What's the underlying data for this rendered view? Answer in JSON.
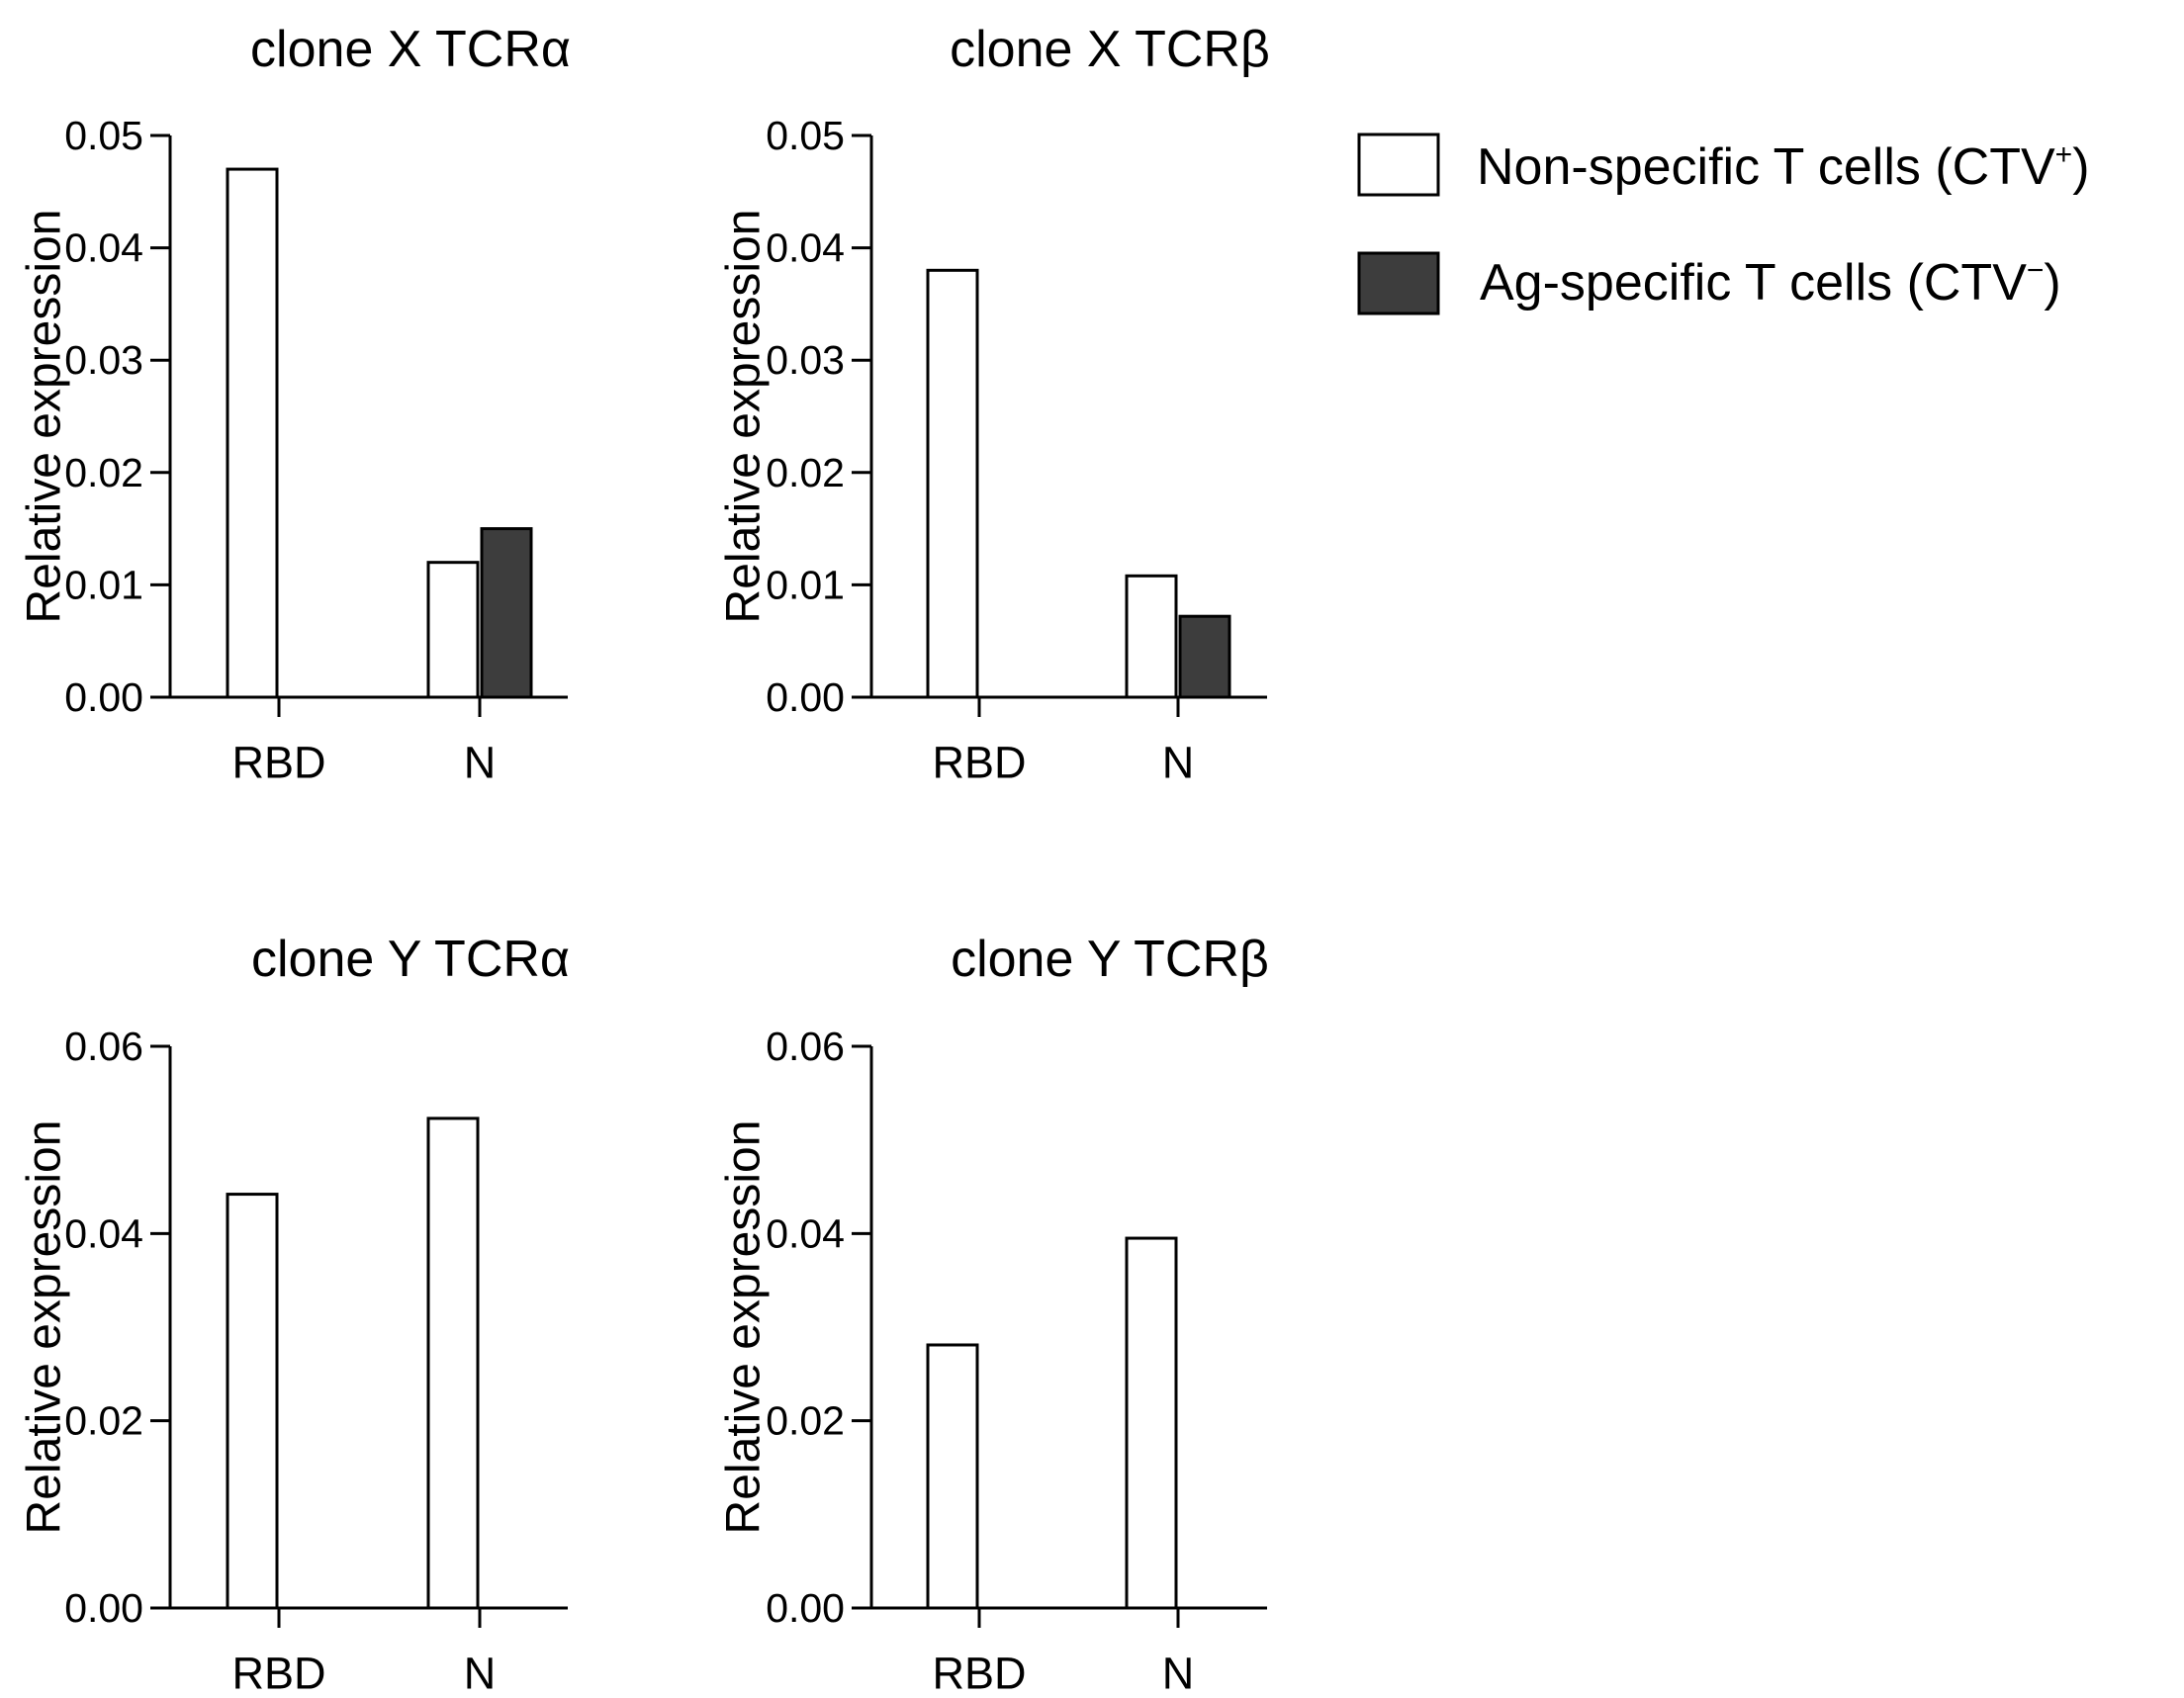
{
  "colors": {
    "nonspecific_fill": "#ffffff",
    "agspecific_fill": "#3d3d3d",
    "stroke": "#000000"
  },
  "legend": {
    "items": [
      {
        "key": "nonspecific",
        "label": "Non-specific T cells (CTV",
        "sup": "+",
        "tail": ")"
      },
      {
        "key": "agspecific",
        "label": "Ag-specific T cells (CTV",
        "sup": "−",
        "tail": ")"
      }
    ]
  },
  "chart_data": [
    {
      "type": "bar",
      "title": "clone X TCRα",
      "ylabel": "Relative expression",
      "xlabel": "",
      "categories": [
        "RBD",
        "N"
      ],
      "ylim": [
        0,
        0.05
      ],
      "yticks": [
        "0.00",
        "0.01",
        "0.02",
        "0.03",
        "0.04",
        "0.05"
      ],
      "series": [
        {
          "name": "Non-specific T cells (CTV+)",
          "values": [
            0.047,
            0.012
          ]
        },
        {
          "name": "Ag-specific T cells (CTV−)",
          "values": [
            0.0,
            0.015
          ]
        }
      ]
    },
    {
      "type": "bar",
      "title": "clone X TCRβ",
      "ylabel": "Relative expression",
      "xlabel": "",
      "categories": [
        "RBD",
        "N"
      ],
      "ylim": [
        0,
        0.05
      ],
      "yticks": [
        "0.00",
        "0.01",
        "0.02",
        "0.03",
        "0.04",
        "0.05"
      ],
      "series": [
        {
          "name": "Non-specific T cells (CTV+)",
          "values": [
            0.038,
            0.0108
          ]
        },
        {
          "name": "Ag-specific T cells (CTV−)",
          "values": [
            0.0,
            0.0072
          ]
        }
      ]
    },
    {
      "type": "bar",
      "title": "clone Y TCRα",
      "ylabel": "Relative expression",
      "xlabel": "",
      "categories": [
        "RBD",
        "N"
      ],
      "ylim": [
        0,
        0.06
      ],
      "yticks": [
        "0.00",
        "0.02",
        "0.04",
        "0.06"
      ],
      "series": [
        {
          "name": "Non-specific T cells (CTV+)",
          "values": [
            0.0442,
            0.0523
          ]
        },
        {
          "name": "Ag-specific T cells (CTV−)",
          "values": [
            0.0,
            0.0
          ]
        }
      ]
    },
    {
      "type": "bar",
      "title": "clone Y TCRβ",
      "ylabel": "Relative expression",
      "xlabel": "",
      "categories": [
        "RBD",
        "N"
      ],
      "ylim": [
        0,
        0.06
      ],
      "yticks": [
        "0.00",
        "0.02",
        "0.04",
        "0.06"
      ],
      "series": [
        {
          "name": "Non-specific T cells (CTV+)",
          "values": [
            0.0281,
            0.0395
          ]
        },
        {
          "name": "Ag-specific T cells (CTV−)",
          "values": [
            0.0,
            0.0
          ]
        }
      ]
    }
  ]
}
